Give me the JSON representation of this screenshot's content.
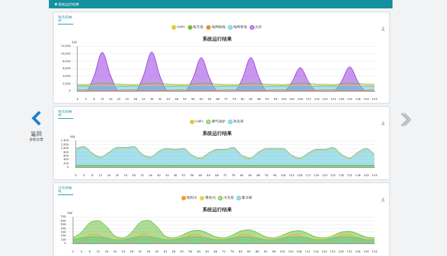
{
  "page": {
    "header": "▼ 系统运行结果",
    "back": "返回",
    "back_sub": "参数设置",
    "panels": [
      "电负荷曲线",
      "热负荷曲线",
      "冷负荷曲线"
    ]
  },
  "chart_data": [
    {
      "type": "line",
      "title": "系统运行结果",
      "ylabel": "kW",
      "legend": "top",
      "grid": true,
      "categories": [
        0,
        4,
        8,
        12,
        16,
        20,
        24,
        28,
        32,
        36,
        40,
        44,
        48,
        52,
        56,
        60,
        64,
        68,
        72,
        76,
        80,
        84,
        88,
        92,
        96,
        100,
        104,
        108,
        112,
        116,
        120,
        124,
        128,
        132,
        136,
        140,
        144
      ],
      "ylim": [
        0,
        12000
      ],
      "yticks": [
        0,
        {
          "value": 2000,
          "label": "2,000"
        },
        {
          "value": 4000,
          "label": "4,000"
        },
        {
          "value": 6000,
          "label": "6,000"
        },
        {
          "value": 8000,
          "label": "8,000"
        },
        {
          "value": 10000,
          "label": "10,000"
        },
        {
          "value": 12000,
          "label": "12,000"
        }
      ],
      "series": [
        {
          "name": "CHP1",
          "color": "#e8c534",
          "type": "line",
          "values": [
            1400,
            1400,
            1500,
            1500,
            1500,
            1450,
            1400,
            1400,
            1500,
            1500,
            1500,
            1450,
            1400,
            1400,
            1500,
            1500,
            1500,
            1450,
            1400,
            1400,
            1500,
            1500,
            1500,
            1450,
            1400,
            1400,
            1500,
            1500,
            1500,
            1450,
            1400,
            1400,
            1500,
            1500,
            1500,
            1450,
            1400
          ]
        },
        {
          "name": "电市场",
          "color": "#6cbf3f",
          "type": "line",
          "values": [
            1700,
            1650,
            1900,
            2100,
            2000,
            1800,
            1700,
            1650,
            1900,
            2100,
            2000,
            1800,
            1700,
            1650,
            1900,
            2100,
            2000,
            1800,
            1700,
            1650,
            1900,
            2100,
            2000,
            1800,
            1700,
            1650,
            1900,
            2100,
            2000,
            1800,
            1700,
            1650,
            1900,
            2100,
            2000,
            1800,
            1700
          ]
        },
        {
          "name": "电网购电",
          "color": "#f08c2a",
          "type": "line",
          "values": [
            300,
            300,
            100,
            0,
            100,
            200,
            300,
            300,
            100,
            0,
            100,
            200,
            300,
            300,
            100,
            0,
            100,
            200,
            300,
            300,
            100,
            0,
            100,
            200,
            300,
            300,
            100,
            0,
            100,
            200,
            300,
            300,
            100,
            0,
            100,
            200,
            300
          ]
        },
        {
          "name": "电网售电",
          "color": "#5bc6dc",
          "type": "area",
          "values": [
            1300,
            1300,
            1300,
            1300,
            1300,
            1300,
            1300,
            1300,
            1300,
            1300,
            1300,
            1300,
            1300,
            1300,
            1300,
            1300,
            1300,
            1300,
            1300,
            1300,
            1300,
            1300,
            1300,
            1300,
            1300,
            1300,
            1300,
            1300,
            1300,
            1300,
            1300,
            1300,
            1300,
            1300,
            1300,
            1300,
            1300
          ]
        },
        {
          "name": "光伏",
          "color": "#9b3fe0",
          "type": "area",
          "values": [
            0,
            0,
            4000,
            10400,
            4200,
            0,
            0,
            0,
            4200,
            10500,
            4000,
            0,
            0,
            0,
            3500,
            9000,
            3500,
            0,
            0,
            0,
            3400,
            9000,
            3600,
            0,
            0,
            0,
            2500,
            6300,
            2500,
            0,
            0,
            0,
            2600,
            6500,
            2500,
            0,
            0
          ]
        }
      ]
    },
    {
      "type": "line",
      "title": "系统运行结果",
      "ylabel": "kW",
      "legend": "top",
      "grid": true,
      "categories": [
        0,
        4,
        8,
        12,
        16,
        20,
        24,
        28,
        32,
        36,
        40,
        44,
        48,
        52,
        56,
        60,
        64,
        68,
        72,
        76,
        80,
        84,
        88,
        92,
        96,
        100,
        104,
        108,
        112,
        116,
        120,
        124,
        128,
        132,
        136,
        140,
        144
      ],
      "ylim": [
        0,
        1400
      ],
      "yticks": [
        0,
        200,
        400,
        600,
        800,
        {
          "value": 1000,
          "label": "1,000"
        },
        {
          "value": 1200,
          "label": "1,200"
        },
        {
          "value": 1400,
          "label": "1,400"
        }
      ],
      "series": [
        {
          "name": "CHP1",
          "color": "#e8c534",
          "type": "line",
          "values": [
            950,
            1050,
            700,
            500,
            750,
            1000,
            1000,
            1050,
            650,
            500,
            800,
            950,
            900,
            950,
            600,
            450,
            700,
            900,
            900,
            1000,
            600,
            450,
            750,
            950,
            950,
            950,
            600,
            450,
            700,
            900,
            900,
            1000,
            650,
            450,
            750,
            950,
            650
          ]
        },
        {
          "name": "燃气锅炉",
          "color": "#6cbf3f",
          "type": "area",
          "values": [
            100,
            100,
            100,
            100,
            100,
            100,
            100,
            100,
            100,
            100,
            100,
            100,
            100,
            100,
            100,
            100,
            100,
            100,
            100,
            100,
            100,
            100,
            100,
            100,
            100,
            100,
            100,
            100,
            100,
            100,
            100,
            100,
            100,
            100,
            100,
            100,
            100
          ]
        },
        {
          "name": "热负荷",
          "color": "#5bc6dc",
          "type": "area",
          "values": [
            1000,
            1100,
            750,
            550,
            800,
            1050,
            1050,
            1100,
            700,
            550,
            850,
            1000,
            950,
            1000,
            650,
            500,
            750,
            950,
            950,
            1050,
            650,
            500,
            800,
            1000,
            1000,
            1000,
            650,
            500,
            750,
            950,
            950,
            1050,
            700,
            500,
            800,
            1000,
            700
          ]
        }
      ]
    },
    {
      "type": "line",
      "title": "系统运行结果",
      "ylabel": "kW",
      "legend": "top",
      "grid": true,
      "categories": [
        0,
        4,
        8,
        12,
        16,
        20,
        24,
        28,
        32,
        36,
        40,
        44,
        48,
        52,
        56,
        60,
        64,
        68,
        72,
        76,
        80,
        84,
        88,
        92,
        96,
        100,
        104,
        108,
        112,
        116,
        120,
        124,
        128,
        132,
        136,
        140,
        144
      ],
      "ylim": [
        0,
        700
      ],
      "yticks": [
        0,
        100,
        200,
        300,
        400,
        500,
        600,
        700
      ],
      "series": [
        {
          "name": "电制冷",
          "color": "#f0a030",
          "type": "line",
          "values": [
            0,
            0,
            230,
            230,
            0,
            0,
            0,
            0,
            230,
            230,
            0,
            0,
            0,
            0,
            230,
            230,
            0,
            0,
            0,
            0,
            230,
            230,
            0,
            0,
            0,
            0,
            230,
            230,
            0,
            0,
            0,
            0,
            230,
            230,
            0,
            0,
            0
          ]
        },
        {
          "name": "冷负荷",
          "color": "#6cbf3f",
          "type": "area",
          "values": [
            150,
            300,
            550,
            600,
            450,
            200,
            150,
            300,
            560,
            610,
            450,
            200,
            150,
            220,
            320,
            350,
            280,
            180,
            150,
            220,
            330,
            360,
            290,
            180,
            150,
            220,
            310,
            340,
            270,
            170,
            150,
            210,
            300,
            320,
            260,
            170,
            150
          ]
        },
        {
          "name": "吸收式",
          "color": "#e8d44d",
          "type": "line",
          "values": [
            120,
            200,
            200,
            200,
            200,
            120,
            120,
            200,
            200,
            200,
            200,
            120,
            120,
            200,
            200,
            200,
            200,
            120,
            120,
            200,
            200,
            200,
            200,
            120,
            120,
            200,
            200,
            200,
            200,
            120,
            120,
            200,
            200,
            200,
            200,
            120,
            120
          ]
        },
        {
          "name": "蓄冷罐",
          "color": "#5bc6dc",
          "type": "area",
          "values": [
            100,
            150,
            180,
            180,
            150,
            100,
            100,
            150,
            180,
            180,
            150,
            100,
            100,
            150,
            180,
            180,
            150,
            100,
            100,
            150,
            180,
            180,
            150,
            100,
            100,
            150,
            180,
            180,
            150,
            100,
            100,
            150,
            180,
            180,
            150,
            100,
            100
          ]
        }
      ]
    }
  ]
}
